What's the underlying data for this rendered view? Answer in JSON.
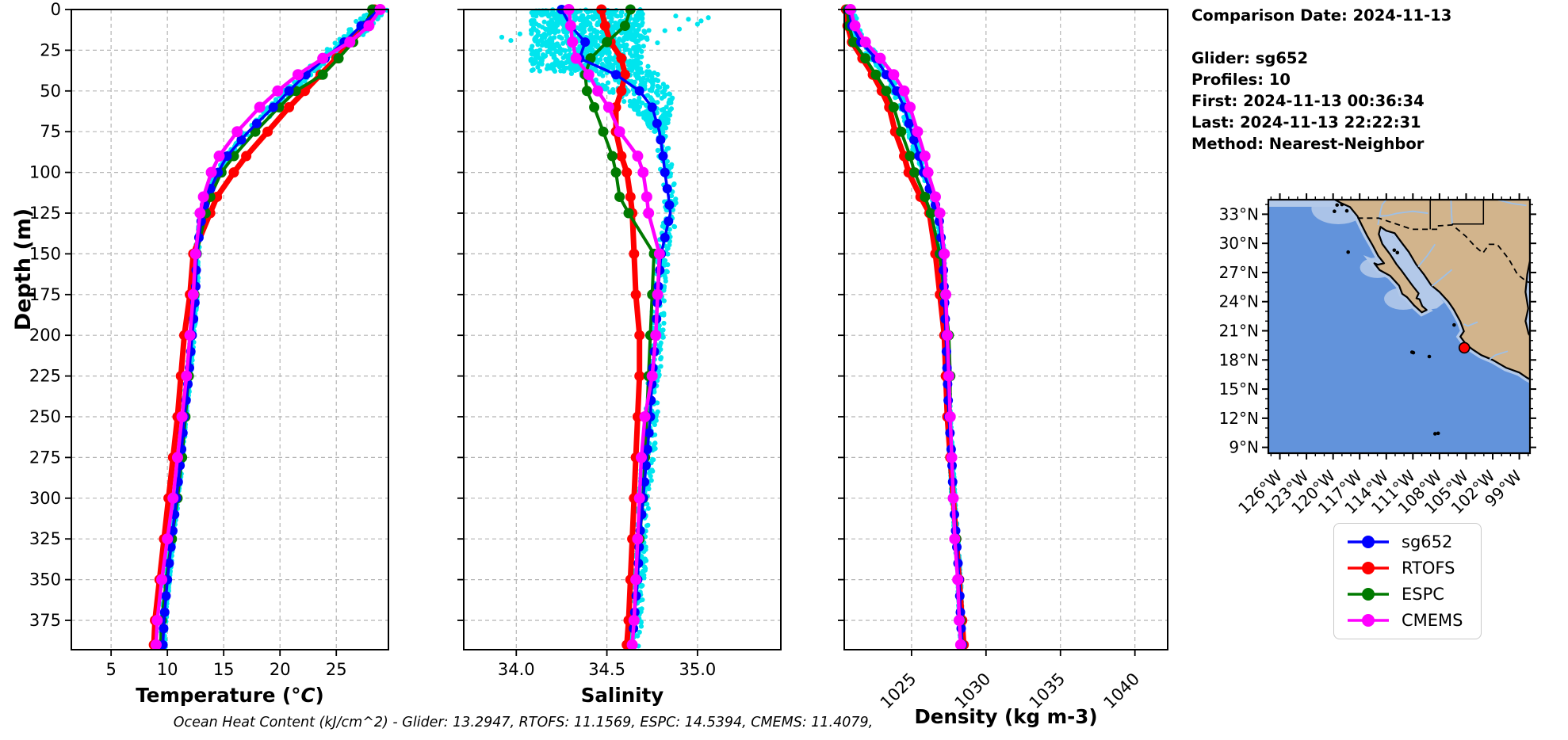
{
  "info": {
    "lines": [
      "Comparison Date: 2024-11-13",
      "",
      "Glider: sg652",
      "Profiles: 10",
      "First: 2024-11-13 00:36:34",
      "Last: 2024-11-13 22:22:31",
      "Method: Nearest-Neighbor"
    ]
  },
  "footer": {
    "text": "Ocean Heat Content (kJ/cm^2) - Glider: 13.2947,  RTOFS: 11.1569,  ESPC: 14.5394,  CMEMS: 11.4079,"
  },
  "legend": {
    "entries": [
      {
        "label": "sg652",
        "color": "#0000ff"
      },
      {
        "label": "RTOFS",
        "color": "#ff0000"
      },
      {
        "label": "ESPC",
        "color": "#007a00"
      },
      {
        "label": "CMEMS",
        "color": "#ff00ff"
      }
    ]
  },
  "colors": {
    "raw_scatter": "#00e5ee",
    "grid": "#b5b5b5",
    "spine": "#000000",
    "ocean": "#6293db",
    "shallow": "#b3c9e9",
    "land": "#d2b48c",
    "coast": "#000000",
    "river": "#9dc0e8",
    "glider_marker": "#ff0000"
  },
  "chart_data": {
    "type": "line",
    "note": "Glider-vs-model vertical ocean profiles; depth increases downward; cyan dots are raw glider samples",
    "depth_axis": {
      "label": "Depth (m)",
      "range": [
        0,
        393
      ],
      "inverted": true,
      "tick_vals": [
        0,
        25,
        50,
        75,
        100,
        125,
        150,
        175,
        200,
        225,
        250,
        275,
        300,
        325,
        350,
        375
      ],
      "tick_labels": [
        "0",
        "25",
        "50",
        "75",
        "100",
        "125",
        "150",
        "175",
        "200",
        "225",
        "250",
        "275",
        "300",
        "325",
        "350",
        "375"
      ]
    },
    "depths": [
      0,
      10,
      20,
      30,
      40,
      50,
      60,
      75,
      90,
      100,
      115,
      125,
      150,
      175,
      200,
      225,
      250,
      275,
      300,
      325,
      350,
      375,
      390
    ],
    "legend_position": "below-map",
    "grid": true,
    "plots": [
      {
        "id": "temperature",
        "xlabel_parts": [
          {
            "t": "Temperature (",
            "i": false
          },
          {
            "t": "°C",
            "i": true
          },
          {
            "t": ")",
            "i": false
          }
        ],
        "range": [
          1.47,
          29.63
        ],
        "tick_vals": [
          5,
          10,
          15,
          20,
          25
        ],
        "tick_labels": [
          "5",
          "10",
          "15",
          "20",
          "25"
        ],
        "tick_rotation": 0,
        "show_depth_labels": true,
        "scatter_profile": "sg652",
        "series": {
          "sg652": [
            28.8,
            27.2,
            25.7,
            24.0,
            22.3,
            20.8,
            19.4,
            17.2,
            15.3,
            14.5,
            13.5,
            13.1,
            12.6,
            12.5,
            12.2,
            11.9,
            11.5,
            11.2,
            10.8,
            10.4,
            10.0,
            9.7,
            9.6
          ],
          "RTOFS": [
            28.4,
            27.6,
            26.3,
            25.0,
            23.6,
            22.2,
            20.8,
            18.9,
            17.0,
            15.9,
            14.4,
            13.8,
            12.3,
            12.0,
            11.5,
            11.2,
            10.9,
            10.5,
            10.1,
            9.7,
            9.3,
            8.9,
            8.8
          ],
          "ESPC": [
            28.2,
            27.5,
            26.5,
            25.2,
            23.8,
            21.4,
            19.9,
            17.8,
            15.9,
            14.8,
            13.8,
            13.4,
            12.6,
            12.4,
            12.1,
            11.9,
            11.6,
            11.3,
            10.9,
            10.4,
            9.9,
            9.5,
            9.4
          ],
          "CMEMS": [
            28.9,
            27.9,
            26.2,
            23.8,
            21.6,
            19.8,
            18.2,
            16.2,
            14.6,
            13.9,
            13.2,
            12.9,
            12.5,
            12.3,
            12.0,
            11.7,
            11.3,
            10.9,
            10.5,
            10.0,
            9.5,
            9.1,
            9.0
          ]
        }
      },
      {
        "id": "salinity",
        "xlabel_parts": [
          {
            "t": "Salinity",
            "i": false
          }
        ],
        "range": [
          33.71,
          35.46
        ],
        "tick_vals": [
          34.0,
          34.5,
          35.0
        ],
        "tick_labels": [
          "34.0",
          "34.5",
          "35.0"
        ],
        "tick_rotation": 0,
        "show_depth_labels": false,
        "scatter_profile": "sg652",
        "scatter_extra": [
          [
            33.92,
            17
          ],
          [
            33.97,
            19
          ],
          [
            34.02,
            15
          ],
          [
            34.95,
            6
          ],
          [
            35.0,
            9
          ],
          [
            35.06,
            5
          ],
          [
            34.9,
            12
          ],
          [
            34.88,
            4
          ],
          [
            34.82,
            13
          ],
          [
            35.02,
            7
          ]
        ],
        "series": {
          "sg652": [
            34.25,
            34.3,
            34.38,
            34.35,
            34.55,
            34.68,
            34.75,
            34.79,
            34.81,
            34.82,
            34.84,
            34.85,
            34.8,
            34.78,
            34.77,
            34.75,
            34.74,
            34.72,
            34.7,
            34.68,
            34.67,
            34.65,
            34.64
          ],
          "RTOFS": [
            34.47,
            34.49,
            34.52,
            34.58,
            34.6,
            34.58,
            34.55,
            34.55,
            34.58,
            34.61,
            34.63,
            34.64,
            34.65,
            34.66,
            34.68,
            34.68,
            34.67,
            34.66,
            34.65,
            34.64,
            34.63,
            34.62,
            34.61
          ],
          "ESPC": [
            34.63,
            34.6,
            34.5,
            34.41,
            34.38,
            34.39,
            34.43,
            34.48,
            34.53,
            34.55,
            34.57,
            34.62,
            34.76,
            34.75,
            34.74,
            34.73,
            34.72,
            34.71,
            34.7,
            34.68,
            34.66,
            34.65,
            34.64
          ],
          "CMEMS": [
            34.29,
            34.3,
            34.31,
            34.33,
            34.4,
            34.45,
            34.51,
            34.57,
            34.67,
            34.7,
            34.72,
            34.73,
            34.79,
            34.78,
            34.77,
            34.75,
            34.71,
            34.69,
            34.68,
            34.67,
            34.66,
            34.65,
            34.64
          ]
        }
      },
      {
        "id": "density",
        "xlabel_parts": [
          {
            "t": "Density (kg m-3)",
            "i": false
          }
        ],
        "range": [
          1020.48,
          1042.2
        ],
        "tick_vals": [
          1025,
          1030,
          1035,
          1040
        ],
        "tick_labels": [
          "1025",
          "1030",
          "1035",
          "1040"
        ],
        "tick_rotation": 45,
        "show_depth_labels": false,
        "scatter_profile": "sg652",
        "series": {
          "sg652": [
            1020.8,
            1021.0,
            1021.6,
            1022.6,
            1023.3,
            1024.0,
            1024.5,
            1025.0,
            1025.5,
            1025.8,
            1026.4,
            1026.8,
            1027.1,
            1027.2,
            1027.3,
            1027.4,
            1027.5,
            1027.7,
            1027.8,
            1028.0,
            1028.2,
            1028.3,
            1028.4
          ],
          "RTOFS": [
            1020.6,
            1020.7,
            1021.0,
            1021.7,
            1022.4,
            1023.0,
            1023.5,
            1023.9,
            1024.5,
            1024.8,
            1025.6,
            1026.2,
            1026.6,
            1026.9,
            1027.2,
            1027.3,
            1027.4,
            1027.6,
            1027.8,
            1028.0,
            1028.2,
            1028.4,
            1028.5
          ],
          "ESPC": [
            1020.7,
            1020.8,
            1021.1,
            1021.9,
            1022.6,
            1023.3,
            1023.8,
            1024.3,
            1024.9,
            1025.2,
            1025.9,
            1026.3,
            1026.9,
            1027.2,
            1027.5,
            1027.6,
            1027.6,
            1027.7,
            1027.8,
            1028.0,
            1028.1,
            1028.3,
            1028.4
          ],
          "CMEMS": [
            1020.9,
            1021.2,
            1021.9,
            1022.9,
            1023.8,
            1024.5,
            1024.9,
            1025.4,
            1025.9,
            1026.1,
            1026.6,
            1026.9,
            1027.2,
            1027.3,
            1027.4,
            1027.5,
            1027.6,
            1027.7,
            1027.8,
            1027.9,
            1028.1,
            1028.2,
            1028.3
          ]
        }
      }
    ]
  },
  "map": {
    "extent": {
      "lon_min": -127.3,
      "lon_max": -97.8,
      "lat_min": 8.4,
      "lat_max": 34.5
    },
    "lat_tick_vals": [
      33,
      30,
      27,
      24,
      21,
      18,
      15,
      12,
      9
    ],
    "lat_tick_labels": [
      "33°N",
      "30°N",
      "27°N",
      "24°N",
      "21°N",
      "18°N",
      "15°N",
      "12°N",
      "9°N"
    ],
    "lon_tick_vals": [
      -126,
      -123,
      -120,
      -117,
      -114,
      -111,
      -108,
      -105,
      -102,
      -99
    ],
    "lon_tick_labels": [
      "126°W",
      "123°W",
      "120°W",
      "117°W",
      "114°W",
      "111°W",
      "108°W",
      "105°W",
      "102°W",
      "99°W"
    ],
    "glider_marker": {
      "lon": -105.2,
      "lat": 19.25
    },
    "land": [
      [
        -119.8,
        34.5
      ],
      [
        -119.1,
        34.15
      ],
      [
        -118.1,
        33.75
      ],
      [
        -117.25,
        32.8
      ],
      [
        -116.75,
        31.85
      ],
      [
        -116.2,
        30.85
      ],
      [
        -115.6,
        29.9
      ],
      [
        -114.9,
        28.7
      ],
      [
        -114.25,
        27.95
      ],
      [
        -114.95,
        27.8
      ],
      [
        -115.35,
        27.95
      ],
      [
        -114.75,
        27.25
      ],
      [
        -113.55,
        26.65
      ],
      [
        -112.55,
        25.65
      ],
      [
        -112.2,
        24.8
      ],
      [
        -111.65,
        24.45
      ],
      [
        -110.85,
        23.6
      ],
      [
        -110.0,
        22.9
      ],
      [
        -109.45,
        23.15
      ],
      [
        -109.95,
        23.55
      ],
      [
        -110.25,
        24.25
      ],
      [
        -110.6,
        24.35
      ],
      [
        -110.35,
        24.85
      ],
      [
        -111.05,
        25.65
      ],
      [
        -111.45,
        26.15
      ],
      [
        -112.25,
        27.15
      ],
      [
        -112.85,
        27.85
      ],
      [
        -113.55,
        28.85
      ],
      [
        -114.45,
        29.95
      ],
      [
        -114.85,
        30.95
      ],
      [
        -114.65,
        31.7
      ],
      [
        -114.0,
        31.3
      ],
      [
        -113.05,
        31.05
      ],
      [
        -112.2,
        30.0
      ],
      [
        -111.45,
        29.1
      ],
      [
        -110.65,
        27.85
      ],
      [
        -109.75,
        26.8
      ],
      [
        -108.95,
        25.7
      ],
      [
        -108.0,
        25.0
      ],
      [
        -107.0,
        24.0
      ],
      [
        -106.4,
        23.2
      ],
      [
        -105.65,
        21.95
      ],
      [
        -105.25,
        20.95
      ],
      [
        -105.65,
        20.4
      ],
      [
        -105.0,
        19.6
      ],
      [
        -104.3,
        19.1
      ],
      [
        -103.3,
        18.5
      ],
      [
        -102.0,
        18.0
      ],
      [
        -100.5,
        17.2
      ],
      [
        -99.0,
        16.7
      ],
      [
        -98.1,
        16.15
      ],
      [
        -97.8,
        16.0
      ],
      [
        -97.8,
        20.5
      ],
      [
        -97.95,
        20.7
      ],
      [
        -98.3,
        22.0
      ],
      [
        -98.0,
        23.3
      ],
      [
        -98.3,
        25.0
      ],
      [
        -98.1,
        26.8
      ],
      [
        -97.8,
        28.2
      ],
      [
        -97.8,
        34.5
      ]
    ],
    "gulf_california": [
      [
        -114.65,
        31.7
      ],
      [
        -113.8,
        31.2
      ],
      [
        -112.8,
        30.2
      ],
      [
        -111.9,
        29.1
      ],
      [
        -110.9,
        27.9
      ],
      [
        -110.0,
        26.8
      ],
      [
        -109.2,
        25.6
      ],
      [
        -108.3,
        24.8
      ],
      [
        -107.5,
        23.9
      ],
      [
        -108.3,
        23.3
      ],
      [
        -109.45,
        23.15
      ],
      [
        -110.25,
        24.25
      ],
      [
        -110.6,
        24.35
      ],
      [
        -111.05,
        25.65
      ],
      [
        -112.25,
        27.15
      ],
      [
        -113.55,
        28.85
      ],
      [
        -114.45,
        29.95
      ],
      [
        -114.85,
        30.95
      ]
    ],
    "gulf_mexico_notch": [
      [
        -97.8,
        28.2
      ],
      [
        -98.1,
        26.8
      ],
      [
        -98.3,
        25.0
      ],
      [
        -98.0,
        23.3
      ],
      [
        -98.3,
        22.0
      ],
      [
        -97.95,
        20.7
      ],
      [
        -97.8,
        20.5
      ]
    ],
    "border_dashed": [
      [
        -117.25,
        32.6
      ],
      [
        -114.85,
        32.6
      ],
      [
        -111.1,
        31.45
      ],
      [
        -108.25,
        31.45
      ],
      [
        -108.25,
        31.8
      ],
      [
        -106.55,
        31.9
      ],
      [
        -105.0,
        30.7
      ],
      [
        -104.0,
        29.7
      ],
      [
        -103.1,
        29.0
      ],
      [
        -102.4,
        29.9
      ],
      [
        -101.5,
        29.9
      ],
      [
        -100.2,
        28.4
      ],
      [
        -99.2,
        26.8
      ],
      [
        -98.2,
        26.1
      ],
      [
        -97.8,
        25.95
      ]
    ],
    "state_lines": [
      [
        [
          -109.05,
          34.5
        ],
        [
          -109.05,
          31.45
        ]
      ],
      [
        [
          -103.05,
          34.5
        ],
        [
          -103.05,
          32.0
        ],
        [
          -106.6,
          32.0
        ]
      ]
    ],
    "rivers": [
      [
        [
          -114.0,
          34.5
        ],
        [
          -114.45,
          34.0
        ],
        [
          -114.65,
          33.3
        ],
        [
          -114.75,
          32.8
        ],
        [
          -114.95,
          31.9
        ]
      ],
      [
        [
          -109.3,
          33.1
        ],
        [
          -111.0,
          33.3
        ],
        [
          -112.8,
          33.1
        ],
        [
          -113.9,
          32.85
        ],
        [
          -114.75,
          32.8
        ]
      ],
      [
        [
          -106.7,
          34.5
        ],
        [
          -106.65,
          33.1
        ],
        [
          -106.55,
          31.9
        ]
      ],
      [
        [
          -108.5,
          29.9
        ],
        [
          -109.4,
          28.7
        ],
        [
          -110.4,
          27.6
        ]
      ],
      [
        [
          -106.6,
          27.3
        ],
        [
          -107.9,
          26.3
        ],
        [
          -108.85,
          25.6
        ]
      ],
      [
        [
          -103.7,
          21.9
        ],
        [
          -104.8,
          21.5
        ],
        [
          -105.25,
          21.7
        ]
      ],
      [
        [
          -100.3,
          18.9
        ],
        [
          -101.7,
          18.5
        ],
        [
          -102.35,
          18.05
        ]
      ],
      [
        [
          -101.5,
          34.5
        ],
        [
          -99.8,
          34.1
        ],
        [
          -98.2,
          33.9
        ]
      ]
    ],
    "islands": [
      [
        -119.0,
        34.0
      ],
      [
        -119.55,
        33.95
      ],
      [
        -118.45,
        33.35
      ],
      [
        -119.85,
        33.3
      ],
      [
        -118.3,
        29.1
      ],
      [
        -113.1,
        29.3
      ],
      [
        -112.75,
        29.05
      ],
      [
        -106.35,
        21.6
      ],
      [
        -110.95,
        18.75
      ],
      [
        -111.1,
        18.8
      ],
      [
        -109.15,
        18.35
      ],
      [
        -108.5,
        10.4
      ],
      [
        -108.15,
        10.45
      ]
    ],
    "shelf_patches": [
      [
        -119.4,
        33.6,
        34,
        20
      ],
      [
        -115.0,
        27.5,
        22,
        13
      ],
      [
        -112.1,
        24.3,
        24,
        14
      ]
    ]
  }
}
